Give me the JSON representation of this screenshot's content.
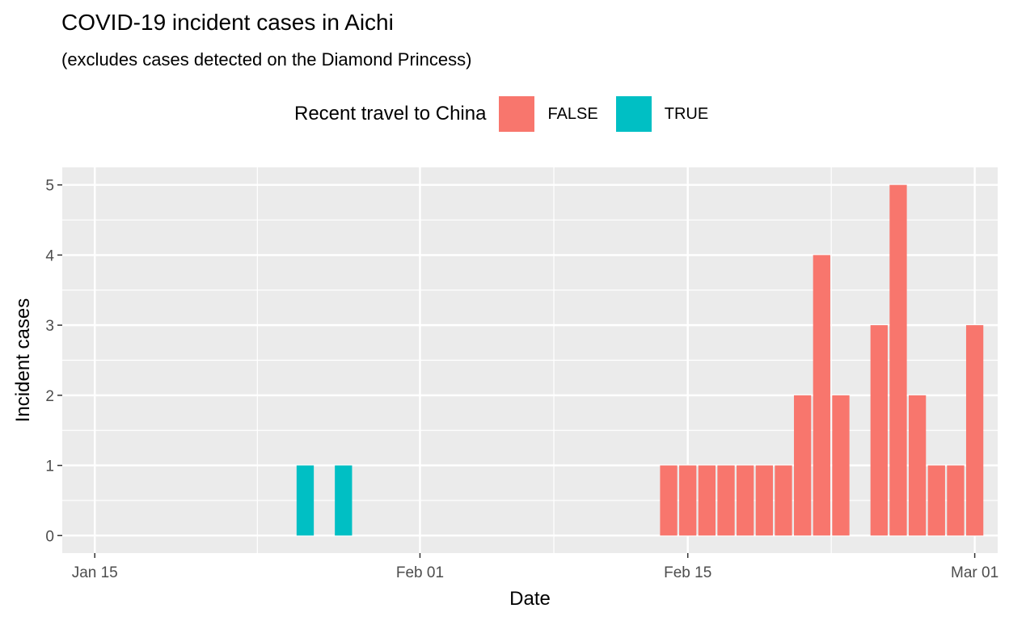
{
  "title": "COVID-19 incident cases in Aichi",
  "subtitle": "(excludes cases detected on the Diamond Princess)",
  "legend": {
    "title": "Recent travel to China",
    "items": [
      {
        "label": "FALSE",
        "color": "#F8766D"
      },
      {
        "label": "TRUE",
        "color": "#00BFC4"
      }
    ]
  },
  "chart_data": {
    "type": "bar",
    "xlabel": "Date",
    "ylabel": "Incident cases",
    "x_ticks": [
      "2020-01-15",
      "2020-02-01",
      "2020-02-15",
      "2020-03-01"
    ],
    "x_tick_labels": [
      "Jan 15",
      "Feb 01",
      "Feb 15",
      "Mar 01"
    ],
    "y_ticks": [
      0,
      1,
      2,
      3,
      4,
      5
    ],
    "xlim": [
      "2020-01-13.3",
      "2020-03-02.2"
    ],
    "ylim": [
      -0.25,
      5.25
    ],
    "grid": true,
    "legend_position": "top",
    "panel_background": "#EBEBEB",
    "series": [
      {
        "name": "TRUE",
        "color": "#00BFC4",
        "points": [
          {
            "date": "2020-01-26",
            "value": 1
          },
          {
            "date": "2020-01-28",
            "value": 1
          }
        ]
      },
      {
        "name": "FALSE",
        "color": "#F8766D",
        "points": [
          {
            "date": "2020-02-14",
            "value": 1
          },
          {
            "date": "2020-02-15",
            "value": 1
          },
          {
            "date": "2020-02-16",
            "value": 1
          },
          {
            "date": "2020-02-17",
            "value": 1
          },
          {
            "date": "2020-02-18",
            "value": 1
          },
          {
            "date": "2020-02-19",
            "value": 1
          },
          {
            "date": "2020-02-20",
            "value": 1
          },
          {
            "date": "2020-02-21",
            "value": 2
          },
          {
            "date": "2020-02-22",
            "value": 4
          },
          {
            "date": "2020-02-23",
            "value": 2
          },
          {
            "date": "2020-02-25",
            "value": 3
          },
          {
            "date": "2020-02-26",
            "value": 5
          },
          {
            "date": "2020-02-27",
            "value": 2
          },
          {
            "date": "2020-02-28",
            "value": 1
          },
          {
            "date": "2020-02-29",
            "value": 1
          },
          {
            "date": "2020-03-01",
            "value": 3
          }
        ]
      }
    ]
  }
}
